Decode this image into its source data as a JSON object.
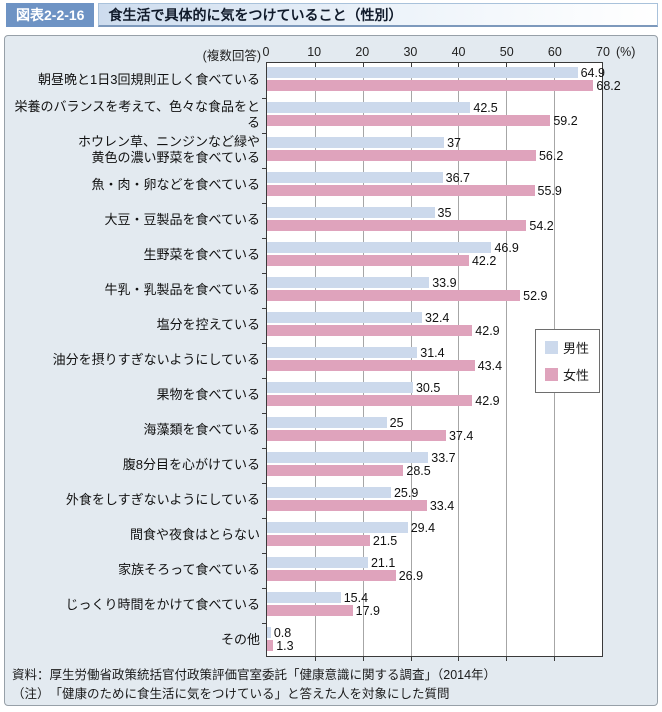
{
  "header": {
    "badge": "図表2-2-16",
    "title": "食生活で具体的に気をつけていること（性別）"
  },
  "footer": {
    "source": "資料：厚生労働省政策統括官付政策評価官室委託「健康意識に関する調査」（2014年）",
    "note": "（注）　「健康のために食生活に気をつけている」と答えた人を対象にした質問"
  },
  "chart_data": {
    "type": "bar",
    "orientation": "horizontal-grouped",
    "title": "食生活で具体的に気をつけていること（性別）",
    "multiple_answers_note": "(複数回答)",
    "unit": "(%)",
    "xlim": [
      0,
      70
    ],
    "xticks": [
      0,
      10,
      20,
      30,
      40,
      50,
      60,
      70
    ],
    "grid": true,
    "legend_position": "middle-right",
    "categories": [
      "朝昼晩と1日3回規則正しく食べている",
      "栄養のバランスを考えて、色々な食品をとる",
      "ホウレン草、ニンジンなど緑や\n黄色の濃い野菜を食べている",
      "魚・肉・卵などを食べている",
      "大豆・豆製品を食べている",
      "生野菜を食べている",
      "牛乳・乳製品を食べている",
      "塩分を控えている",
      "油分を摂りすぎないようにしている",
      "果物を食べている",
      "海藻類を食べている",
      "腹8分目を心がけている",
      "外食をしすぎないようにしている",
      "間食や夜食はとらない",
      "家族そろって食べている",
      "じっくり時間をかけて食べている",
      "その他"
    ],
    "series": [
      {
        "name": "男性",
        "color": "#ccd9ec",
        "values": [
          "64.9",
          "42.5",
          "37",
          "36.7",
          "35",
          "46.9",
          "33.9",
          "32.4",
          "31.4",
          "30.5",
          "25",
          "33.7",
          "25.9",
          "29.4",
          "21.1",
          "15.4",
          "0.8"
        ]
      },
      {
        "name": "女性",
        "color": "#dfa3bc",
        "values": [
          "68.2",
          "59.2",
          "56.2",
          "55.9",
          "54.2",
          "42.2",
          "52.9",
          "42.9",
          "43.4",
          "42.9",
          "37.4",
          "28.5",
          "33.4",
          "21.5",
          "26.9",
          "17.9",
          "1.3"
        ]
      }
    ]
  },
  "colors": {
    "badge_bg": "#6e93c4",
    "panel_bg": "#e3eaf0",
    "plot_border": "#3a3a3a",
    "gridline": "#a6a6a6"
  }
}
